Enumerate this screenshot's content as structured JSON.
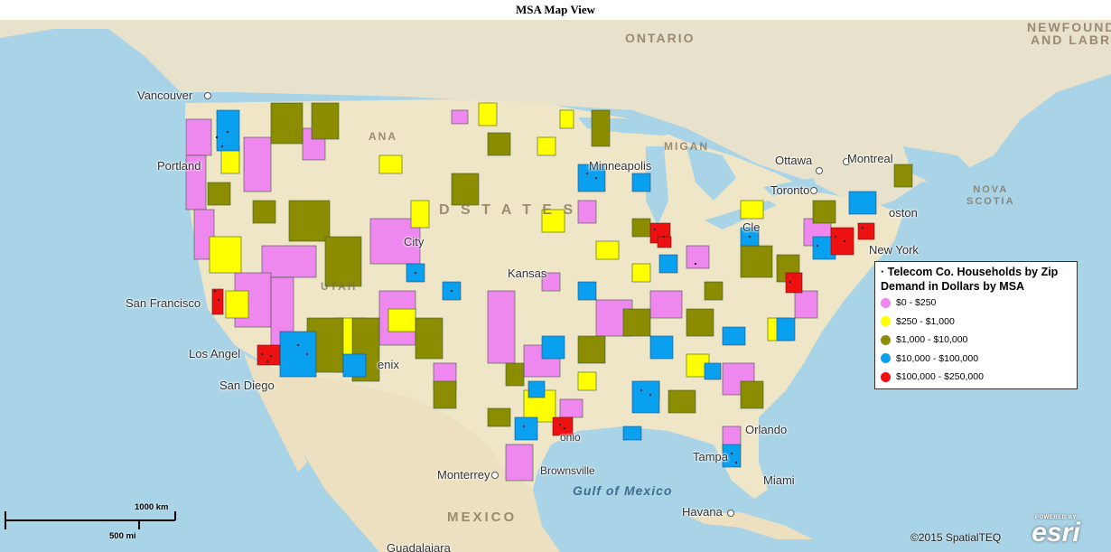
{
  "title": "MSA Map View",
  "legend": {
    "title": "· Telecom Co. Households by Zip Demand in Dollars by MSA",
    "items": [
      {
        "label": "$0 - $250",
        "color": "#ee88ee"
      },
      {
        "label": "$250 - $1,000",
        "color": "#ffff00"
      },
      {
        "label": "$1,000 - $10,000",
        "color": "#8c8c00"
      },
      {
        "label": "$10,000 - $100,000",
        "color": "#0aa0f0"
      },
      {
        "label": "$100,000 - $250,000",
        "color": "#ee1111"
      }
    ]
  },
  "cities": {
    "vancouver": "Vancouver",
    "portland": "Portland",
    "san_francisco": "San Francisco",
    "los_angeles": "Los Angel",
    "san_diego": "San Diego",
    "minneapolis": "Minneapolis",
    "ottawa": "Ottawa",
    "montreal": "Montreal",
    "toronto": "Toronto",
    "boston": "oston",
    "new_york": "New York",
    "cleveland": "Cle",
    "kansas": "Kansas",
    "city": "City",
    "enix": "enix",
    "orlando": "Orlando",
    "tampa": "Tampa",
    "miami": "Miami",
    "monterrey": "Monterrey",
    "brownsville": "Brownsville",
    "havana": "Havana",
    "guadalajara": "Guadalajara",
    "onio": "onio"
  },
  "regions": {
    "ontario": "ONTARIO",
    "newfoundland": "NEWFOUNDL",
    "labrador": "AND LABRAD",
    "nova_scotia": "NOVA\nSCOTIA",
    "united_states": "D   S T A T E S",
    "mexico": "MEXICO",
    "montana": "ANA",
    "utah": "UTAH",
    "michigan": "MIGAN"
  },
  "water": {
    "gulf_of_mexico": "Gulf of Mexico"
  },
  "scale": {
    "km": "1000 km",
    "mi": "500 mi"
  },
  "credit": "©2015 SpatialTEQ",
  "esri": {
    "powered": "POWERED BY",
    "logo": "esri"
  }
}
